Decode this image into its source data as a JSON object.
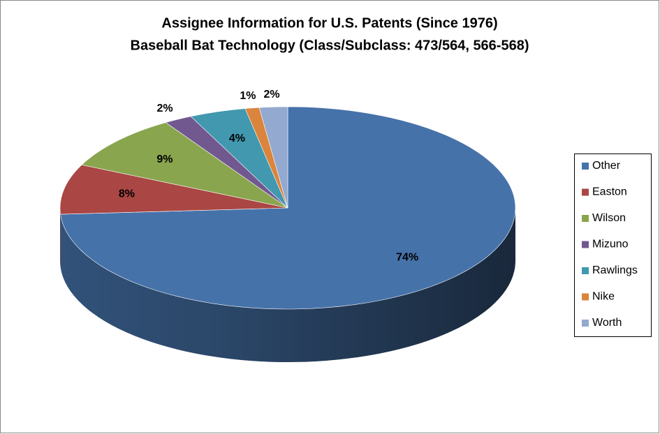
{
  "chart_data": {
    "type": "pie3d",
    "title": "Assignee Information for U.S. Patents (Since 1976)",
    "subtitle": "Baseball Bat Technology (Class/Subclass: 473/564, 566-568)",
    "categories": [
      "Other",
      "Easton",
      "Wilson",
      "Mizuno",
      "Rawlings",
      "Nike",
      "Worth"
    ],
    "values": [
      74,
      8,
      9,
      2,
      4,
      1,
      2
    ],
    "value_labels": [
      "74%",
      "8%",
      "9%",
      "2%",
      "4%",
      "1%",
      "2%"
    ],
    "colors": [
      "#4672aa",
      "#aa4643",
      "#89a54e",
      "#71588f",
      "#4198af",
      "#db843d",
      "#93a9cf"
    ],
    "legend": "right"
  }
}
